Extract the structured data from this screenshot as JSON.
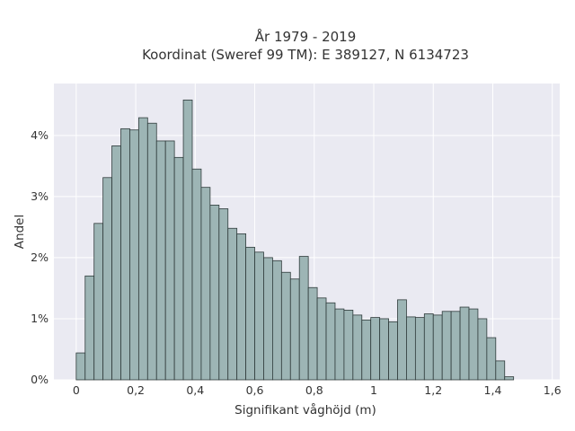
{
  "chart_data": {
    "type": "bar",
    "title_lines": [
      "År 1979 - 2019",
      "Koordinat (Sweref 99 TM): E 389127, N 6134723"
    ],
    "xlabel": "Signifikant våghöjd (m)",
    "ylabel": "Andel",
    "xlim": [
      -0.075,
      1.625
    ],
    "ylim": [
      0,
      4.85
    ],
    "x_ticks": [
      {
        "value": 0,
        "label": "0"
      },
      {
        "value": 0.2,
        "label": "0,2"
      },
      {
        "value": 0.4,
        "label": "0,4"
      },
      {
        "value": 0.6,
        "label": "0,6"
      },
      {
        "value": 0.8,
        "label": "0,8"
      },
      {
        "value": 1.0,
        "label": "1"
      },
      {
        "value": 1.2,
        "label": "1,2"
      },
      {
        "value": 1.4,
        "label": "1,4"
      },
      {
        "value": 1.6,
        "label": "1,6"
      }
    ],
    "y_ticks": [
      {
        "value": 0,
        "label": "0%"
      },
      {
        "value": 1,
        "label": "1%"
      },
      {
        "value": 2,
        "label": "2%"
      },
      {
        "value": 3,
        "label": "3%"
      },
      {
        "value": 4,
        "label": "4%"
      }
    ],
    "grid": true,
    "bin_width": 0.03,
    "bin_starts": [
      0.0,
      0.03,
      0.06,
      0.09,
      0.12,
      0.15,
      0.18,
      0.21,
      0.24,
      0.27,
      0.3,
      0.33,
      0.36,
      0.39,
      0.42,
      0.45,
      0.48,
      0.51,
      0.54,
      0.57,
      0.6,
      0.63,
      0.66,
      0.69,
      0.72,
      0.75,
      0.78,
      0.81,
      0.84,
      0.87,
      0.9,
      0.93,
      0.96,
      0.99,
      1.02,
      1.05,
      1.08,
      1.11,
      1.14,
      1.17,
      1.2,
      1.23,
      1.26,
      1.29,
      1.32,
      1.35,
      1.38,
      1.41,
      1.44,
      1.47,
      1.5
    ],
    "values": [
      0.44,
      1.7,
      2.56,
      3.31,
      3.83,
      4.11,
      4.09,
      4.29,
      4.2,
      3.91,
      3.91,
      3.64,
      4.58,
      3.45,
      3.15,
      2.86,
      2.8,
      2.48,
      2.39,
      2.17,
      2.09,
      2.0,
      1.95,
      1.76,
      1.65,
      2.02,
      1.51,
      1.34,
      1.26,
      1.16,
      1.14,
      1.06,
      0.98,
      1.02,
      1.0,
      0.95,
      1.31,
      1.03,
      1.02,
      1.08,
      1.06,
      1.12,
      1.12,
      1.19,
      1.16,
      1.0,
      0.69,
      0.31,
      0.05,
      0.0,
      0.0
    ],
    "colors": {
      "bar_fill": "#9db5b5",
      "bar_stroke": "#2f3b3b",
      "plot_background": "#eaeaf2",
      "grid": "#ffffff",
      "text": "#333333"
    }
  }
}
